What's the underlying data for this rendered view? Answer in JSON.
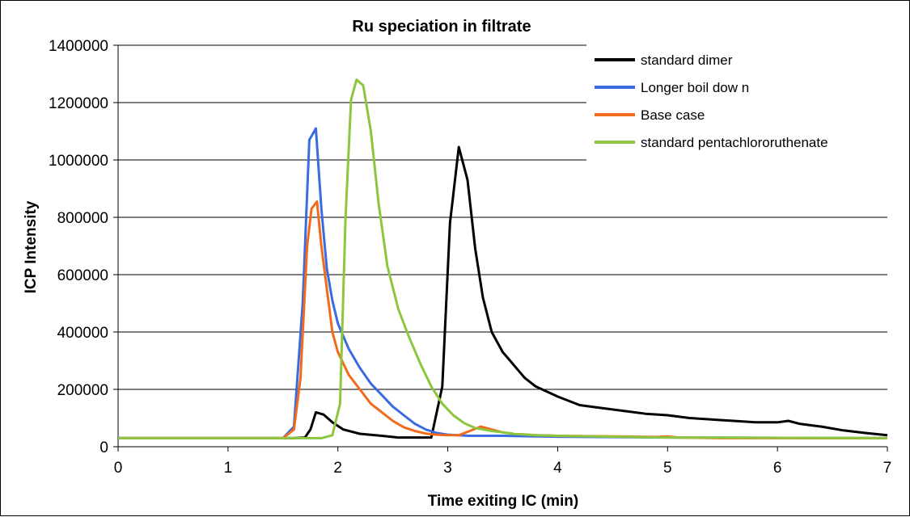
{
  "chart_data": {
    "type": "line",
    "title": "Ru speciation in filtrate",
    "xlabel": "Time exiting IC (min)",
    "ylabel": "ICP Intensity",
    "xlim": [
      0,
      7
    ],
    "ylim": [
      0,
      1400000
    ],
    "x_ticks": [
      "0",
      "1",
      "2",
      "3",
      "4",
      "5",
      "6",
      "7"
    ],
    "y_ticks": [
      "0",
      "200000",
      "400000",
      "600000",
      "800000",
      "1000000",
      "1200000",
      "1400000"
    ],
    "grid": "horizontal",
    "legend_position": "top-right",
    "series": [
      {
        "name": "standard dimer",
        "color": "#000000",
        "points": [
          [
            0,
            30000
          ],
          [
            1.6,
            30000
          ],
          [
            1.7,
            32000
          ],
          [
            1.75,
            60000
          ],
          [
            1.8,
            120000
          ],
          [
            1.87,
            112000
          ],
          [
            1.95,
            85000
          ],
          [
            2.05,
            60000
          ],
          [
            2.2,
            45000
          ],
          [
            2.4,
            38000
          ],
          [
            2.55,
            32000
          ],
          [
            2.85,
            32000
          ],
          [
            2.95,
            210000
          ],
          [
            3.02,
            780000
          ],
          [
            3.1,
            1045000
          ],
          [
            3.18,
            930000
          ],
          [
            3.25,
            690000
          ],
          [
            3.32,
            520000
          ],
          [
            3.4,
            400000
          ],
          [
            3.5,
            330000
          ],
          [
            3.6,
            285000
          ],
          [
            3.7,
            240000
          ],
          [
            3.8,
            210000
          ],
          [
            4.0,
            175000
          ],
          [
            4.2,
            145000
          ],
          [
            4.4,
            135000
          ],
          [
            4.6,
            125000
          ],
          [
            4.8,
            115000
          ],
          [
            5.0,
            110000
          ],
          [
            5.2,
            100000
          ],
          [
            5.4,
            95000
          ],
          [
            5.6,
            90000
          ],
          [
            5.8,
            85000
          ],
          [
            6.0,
            85000
          ],
          [
            6.1,
            90000
          ],
          [
            6.2,
            80000
          ],
          [
            6.4,
            70000
          ],
          [
            6.6,
            57000
          ],
          [
            6.8,
            48000
          ],
          [
            7.0,
            40000
          ]
        ]
      },
      {
        "name": "Longer boil dow n",
        "color": "#3a6be0",
        "points": [
          [
            0,
            30000
          ],
          [
            1.5,
            30000
          ],
          [
            1.6,
            70000
          ],
          [
            1.68,
            500000
          ],
          [
            1.74,
            1070000
          ],
          [
            1.8,
            1110000
          ],
          [
            1.85,
            830000
          ],
          [
            1.9,
            620000
          ],
          [
            1.95,
            510000
          ],
          [
            2.0,
            430000
          ],
          [
            2.1,
            340000
          ],
          [
            2.2,
            275000
          ],
          [
            2.3,
            220000
          ],
          [
            2.4,
            180000
          ],
          [
            2.5,
            140000
          ],
          [
            2.6,
            110000
          ],
          [
            2.7,
            80000
          ],
          [
            2.8,
            60000
          ],
          [
            2.9,
            48000
          ],
          [
            3.0,
            42000
          ],
          [
            3.2,
            38000
          ],
          [
            3.5,
            38000
          ],
          [
            4.0,
            35000
          ],
          [
            5.0,
            32000
          ],
          [
            7.0,
            30000
          ]
        ]
      },
      {
        "name": "Base case",
        "color": "#f26b1d",
        "points": [
          [
            0,
            30000
          ],
          [
            1.5,
            30000
          ],
          [
            1.6,
            60000
          ],
          [
            1.66,
            240000
          ],
          [
            1.72,
            700000
          ],
          [
            1.76,
            830000
          ],
          [
            1.81,
            855000
          ],
          [
            1.85,
            700000
          ],
          [
            1.9,
            550000
          ],
          [
            1.95,
            400000
          ],
          [
            2.0,
            330000
          ],
          [
            2.1,
            250000
          ],
          [
            2.2,
            200000
          ],
          [
            2.3,
            150000
          ],
          [
            2.4,
            120000
          ],
          [
            2.5,
            90000
          ],
          [
            2.6,
            68000
          ],
          [
            2.7,
            55000
          ],
          [
            2.8,
            46000
          ],
          [
            2.9,
            42000
          ],
          [
            3.0,
            40000
          ],
          [
            3.1,
            40000
          ],
          [
            3.2,
            55000
          ],
          [
            3.3,
            70000
          ],
          [
            3.4,
            60000
          ],
          [
            3.5,
            50000
          ],
          [
            3.6,
            45000
          ],
          [
            3.8,
            40000
          ],
          [
            4.0,
            38000
          ],
          [
            4.5,
            36000
          ],
          [
            4.9,
            34000
          ],
          [
            5.0,
            36000
          ],
          [
            5.1,
            32000
          ],
          [
            5.5,
            30000
          ],
          [
            7.0,
            30000
          ]
        ]
      },
      {
        "name": "standard pentachlororuthenate",
        "color": "#8cc63f",
        "points": [
          [
            0,
            30000
          ],
          [
            1.85,
            30000
          ],
          [
            1.95,
            40000
          ],
          [
            2.02,
            150000
          ],
          [
            2.07,
            800000
          ],
          [
            2.12,
            1210000
          ],
          [
            2.17,
            1280000
          ],
          [
            2.23,
            1260000
          ],
          [
            2.3,
            1100000
          ],
          [
            2.37,
            850000
          ],
          [
            2.45,
            630000
          ],
          [
            2.55,
            480000
          ],
          [
            2.65,
            380000
          ],
          [
            2.75,
            290000
          ],
          [
            2.85,
            210000
          ],
          [
            2.95,
            150000
          ],
          [
            3.05,
            110000
          ],
          [
            3.15,
            82000
          ],
          [
            3.25,
            65000
          ],
          [
            3.4,
            55000
          ],
          [
            3.6,
            45000
          ],
          [
            3.8,
            40000
          ],
          [
            4.0,
            38000
          ],
          [
            4.5,
            35000
          ],
          [
            5.0,
            32000
          ],
          [
            7.0,
            30000
          ]
        ]
      }
    ]
  }
}
